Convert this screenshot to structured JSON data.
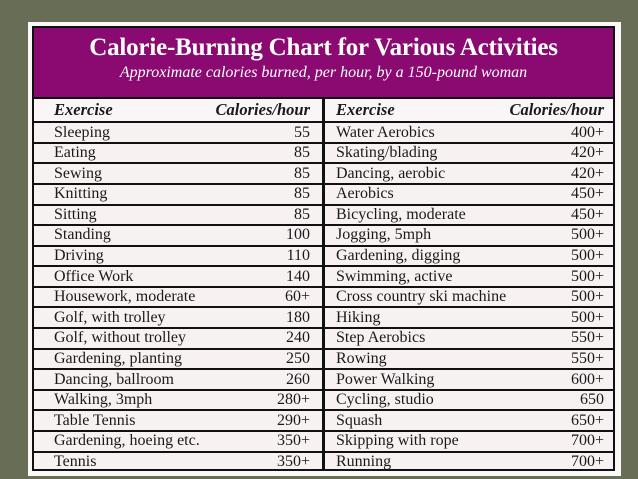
{
  "title": "Calorie-Burning Chart for Various Activities",
  "subtitle": "Approximate calories burned, per hour, by a 150-pound woman",
  "columns": {
    "exercise": "Exercise",
    "calories": "Calories/hour"
  },
  "colors": {
    "header": "#8a0a72",
    "background": "#686d56"
  },
  "left": [
    {
      "exercise": "Sleeping",
      "calories": "55"
    },
    {
      "exercise": "Eating",
      "calories": "85"
    },
    {
      "exercise": "Sewing",
      "calories": "85"
    },
    {
      "exercise": "Knitting",
      "calories": "85"
    },
    {
      "exercise": "Sitting",
      "calories": "85"
    },
    {
      "exercise": "Standing",
      "calories": "100"
    },
    {
      "exercise": "Driving",
      "calories": "110"
    },
    {
      "exercise": "Office Work",
      "calories": "140"
    },
    {
      "exercise": "Housework, moderate",
      "calories": "60+"
    },
    {
      "exercise": "Golf, with trolley",
      "calories": "180"
    },
    {
      "exercise": "Golf, without trolley",
      "calories": "240"
    },
    {
      "exercise": "Gardening, planting",
      "calories": "250"
    },
    {
      "exercise": "Dancing, ballroom",
      "calories": "260"
    },
    {
      "exercise": "Walking, 3mph",
      "calories": "280+"
    },
    {
      "exercise": "Table Tennis",
      "calories": "290+"
    },
    {
      "exercise": "Gardening, hoeing etc.",
      "calories": "350+"
    },
    {
      "exercise": "Tennis",
      "calories": "350+"
    }
  ],
  "right": [
    {
      "exercise": "Water Aerobics",
      "calories": "400+"
    },
    {
      "exercise": "Skating/blading",
      "calories": "420+"
    },
    {
      "exercise": "Dancing, aerobic",
      "calories": "420+"
    },
    {
      "exercise": "Aerobics",
      "calories": "450+"
    },
    {
      "exercise": "Bicycling, moderate",
      "calories": "450+"
    },
    {
      "exercise": "Jogging, 5mph",
      "calories": "500+"
    },
    {
      "exercise": "Gardening, digging",
      "calories": "500+"
    },
    {
      "exercise": "Swimming, active",
      "calories": "500+"
    },
    {
      "exercise": "Cross country ski machine",
      "calories": "500+"
    },
    {
      "exercise": "Hiking",
      "calories": "500+"
    },
    {
      "exercise": "Step Aerobics",
      "calories": "550+"
    },
    {
      "exercise": "Rowing",
      "calories": "550+"
    },
    {
      "exercise": "Power Walking",
      "calories": "600+"
    },
    {
      "exercise": "Cycling, studio",
      "calories": "650"
    },
    {
      "exercise": "Squash",
      "calories": "650+"
    },
    {
      "exercise": "Skipping with rope",
      "calories": "700+"
    },
    {
      "exercise": "Running",
      "calories": "700+"
    }
  ]
}
